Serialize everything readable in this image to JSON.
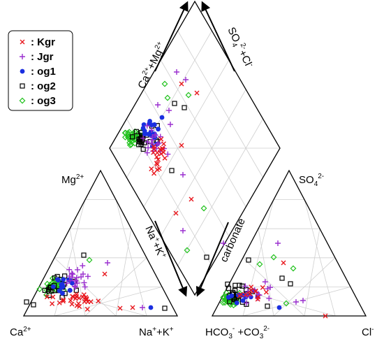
{
  "labels": {
    "mg": "Mg",
    "mg_sup": "2+",
    "ca": "Ca",
    "ca_sup": "2+",
    "nak": "Na",
    "nak_sup1": "+",
    "nak_mid": "+K",
    "nak_sup2": "+",
    "so4": "SO",
    "so4_sub": "4",
    "so4_sup": "2-",
    "hco3": "HCO",
    "hco3_sub": "3",
    "hco3_sup": "-",
    "hco3_mid": " +CO",
    "co3_sub": "3",
    "co3_sup": "2-",
    "cl": "Cl",
    "cl_sup": "-",
    "ul_axis": "Ca",
    "ul_axis_sup": "2+",
    "ul_axis_mid": "+Mg",
    "ul_axis_sup2": "2+",
    "ur_axis": "SO",
    "ur_axis_sub": "4",
    "ur_axis_sup": "2-",
    "ur_axis_mid": "+Cl",
    "ur_axis_sup2": "-",
    "ll_axis": "Na",
    "ll_axis_sup": "+",
    "ll_axis_mid": "+K",
    "ll_axis_sup2": "+",
    "lr_axis": "carbonate"
  },
  "legend": [
    {
      "name": ": Kgr",
      "color": "#e8171d",
      "marker": "x-icon"
    },
    {
      "name": ": Jgr",
      "color": "#9a2fcf",
      "marker": "plus-icon"
    },
    {
      "name": ": og1",
      "color": "#1a2fe0",
      "marker": "filled-circle-icon"
    },
    {
      "name": ": og2",
      "color": "#000000",
      "marker": "open-square-icon"
    },
    {
      "name": ": og3",
      "color": "#22c21e",
      "marker": "open-diamond-icon"
    }
  ]
}
